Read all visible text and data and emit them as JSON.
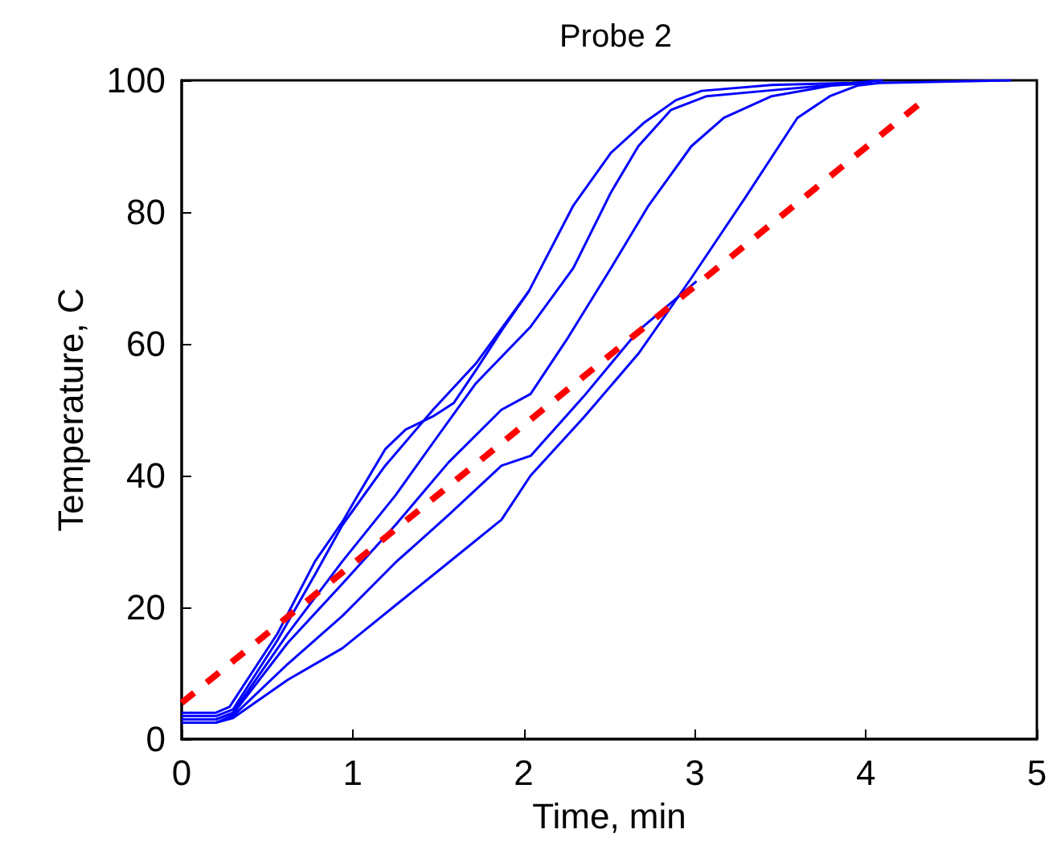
{
  "chart_data": {
    "type": "line",
    "title": "Probe 2",
    "xlabel": "Time, min",
    "ylabel": "Temperature, C",
    "xlim": [
      0,
      5
    ],
    "xticks": [
      0,
      1,
      2,
      3,
      4,
      5
    ],
    "ylim": [
      0,
      100
    ],
    "yticks": [
      0,
      20,
      40,
      60,
      80,
      100
    ],
    "grid": false,
    "marker": "none",
    "series": [
      {
        "color": "#0000ff",
        "x": [
          0,
          0.2,
          0.28,
          0.56,
          0.78,
          0.94,
          1.03,
          1.19,
          1.31,
          1.47,
          1.59,
          1.72,
          1.87,
          2.03
        ],
        "values": [
          4,
          4,
          4.9,
          16,
          27,
          33,
          37,
          44,
          47,
          49,
          51,
          56,
          62,
          68
        ]
      },
      {
        "color": "#0000ff",
        "x": [
          0,
          0.2,
          0.3,
          0.56,
          0.78,
          0.94,
          1.19,
          1.47,
          1.72,
          2.03,
          2.29,
          2.51,
          2.7,
          2.89,
          3.04,
          3.45,
          3.92,
          4.1
        ],
        "values": [
          3.5,
          3.5,
          4.5,
          15,
          25,
          32.5,
          41.5,
          50,
          57,
          68,
          81,
          89,
          93.5,
          97,
          98.4,
          99.3,
          99.6,
          100
        ]
      },
      {
        "color": "#0000ff",
        "x": [
          0,
          0.2,
          0.3,
          0.62,
          0.94,
          1.25,
          1.47,
          1.72,
          2.04,
          2.29,
          2.51,
          2.67,
          2.86,
          3.07,
          3.41,
          3.76,
          4.04
        ],
        "values": [
          3,
          3,
          4,
          16,
          27,
          37,
          45,
          54,
          62.6,
          71.5,
          83,
          90,
          95.5,
          97.6,
          98.4,
          99.2,
          99.6
        ]
      },
      {
        "color": "#0000ff",
        "x": [
          0,
          0.2,
          0.3,
          0.62,
          0.94,
          1.25,
          1.56,
          1.87,
          2.04,
          2.26,
          2.51,
          2.73,
          2.98,
          3.17,
          3.45,
          3.8,
          4.02
        ],
        "values": [
          3,
          3,
          3.8,
          14.6,
          23.6,
          32.5,
          42,
          50,
          52.4,
          61,
          71.5,
          81,
          90,
          94.3,
          97.6,
          99.2,
          99.6
        ]
      },
      {
        "color": "#0000ff",
        "x": [
          0,
          0.2,
          0.3,
          0.62,
          0.94,
          1.25,
          1.56,
          1.87,
          2.04,
          2.35,
          2.67,
          3.01
        ],
        "values": [
          2.5,
          2.5,
          3.5,
          11.4,
          18.7,
          26.8,
          34,
          41.5,
          43,
          52,
          62,
          69.5
        ]
      },
      {
        "color": "#0000ff",
        "x": [
          0,
          0.2,
          0.3,
          0.62,
          0.94,
          1.25,
          1.56,
          1.87,
          2.04,
          2.35,
          2.67,
          2.98,
          3.29,
          3.6,
          3.79,
          3.95,
          4.08,
          4.85
        ],
        "values": [
          2.5,
          2.5,
          3.2,
          9,
          13.8,
          20.3,
          26.8,
          33.3,
          40,
          48.8,
          58.5,
          70,
          82,
          94.3,
          97.6,
          99.2,
          99.6,
          100
        ]
      },
      {
        "color": "#ff0000",
        "line_style": "dashed",
        "x": [
          0,
          4.34
        ],
        "values": [
          5.5,
          97
        ]
      }
    ]
  }
}
